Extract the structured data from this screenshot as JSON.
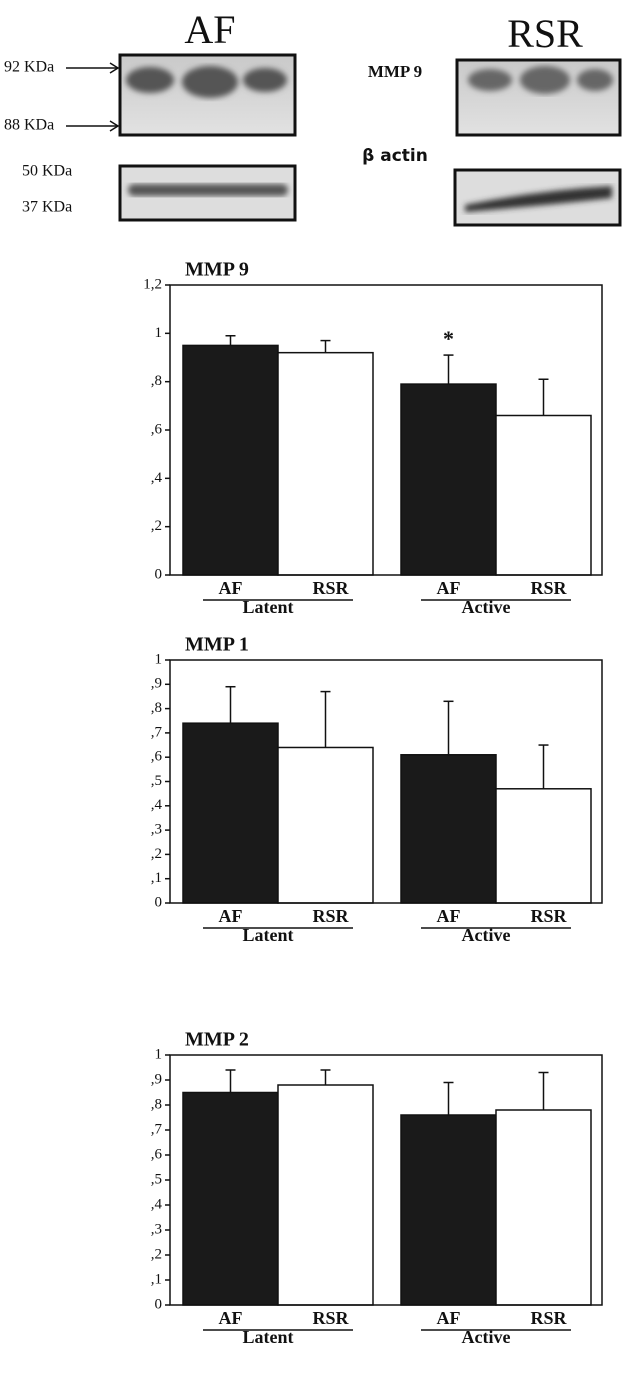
{
  "blot": {
    "left_title": "AF",
    "right_title": "RSR",
    "mmp_label": "MMP 9",
    "actin_label": "β actin",
    "markers": [
      "92 KDa",
      "88 KDa",
      "50 KDa",
      "37 KDa"
    ]
  },
  "chart_data": [
    {
      "type": "bar",
      "title": "MMP 9",
      "categories": [
        "Latent",
        "Active"
      ],
      "series": [
        {
          "name": "AF",
          "color": "#1a1a1a",
          "values": [
            0.95,
            0.79
          ],
          "errors": [
            0.04,
            0.12
          ]
        },
        {
          "name": "RSR",
          "color": "#ffffff",
          "values": [
            0.92,
            0.66
          ],
          "errors": [
            0.05,
            0.15
          ]
        }
      ],
      "annotation": "*",
      "ylim": [
        0,
        1.2
      ],
      "yticks": [
        0,
        {
          "value": 0.2,
          "label": ",2"
        },
        {
          "value": 0.4,
          "label": ",4"
        },
        {
          "value": 0.6,
          "label": ",6"
        },
        {
          "value": 0.8,
          "label": ",8"
        },
        1,
        {
          "value": 1.2,
          "label": "1,2"
        }
      ]
    },
    {
      "type": "bar",
      "title": "MMP 1",
      "categories": [
        "Latent",
        "Active"
      ],
      "series": [
        {
          "name": "AF",
          "color": "#1a1a1a",
          "values": [
            0.74,
            0.61
          ],
          "errors": [
            0.15,
            0.22
          ]
        },
        {
          "name": "RSR",
          "color": "#ffffff",
          "values": [
            0.64,
            0.47
          ],
          "errors": [
            0.23,
            0.18
          ]
        }
      ],
      "ylim": [
        0,
        1
      ],
      "yticks": [
        0,
        {
          "value": 0.1,
          "label": ",1"
        },
        {
          "value": 0.2,
          "label": ",2"
        },
        {
          "value": 0.3,
          "label": ",3"
        },
        {
          "value": 0.4,
          "label": ",4"
        },
        {
          "value": 0.5,
          "label": ",5"
        },
        {
          "value": 0.6,
          "label": ",6"
        },
        {
          "value": 0.7,
          "label": ",7"
        },
        {
          "value": 0.8,
          "label": ",8"
        },
        {
          "value": 0.9,
          "label": ",9"
        },
        1
      ]
    },
    {
      "type": "bar",
      "title": "MMP 2",
      "categories": [
        "Latent",
        "Active"
      ],
      "series": [
        {
          "name": "AF",
          "color": "#1a1a1a",
          "values": [
            0.85,
            0.76
          ],
          "errors": [
            0.09,
            0.13
          ]
        },
        {
          "name": "RSR",
          "color": "#ffffff",
          "values": [
            0.88,
            0.78
          ],
          "errors": [
            0.06,
            0.15
          ]
        }
      ],
      "ylim": [
        0,
        1
      ],
      "yticks": [
        0,
        {
          "value": 0.1,
          "label": ",1"
        },
        {
          "value": 0.2,
          "label": ",2"
        },
        {
          "value": 0.3,
          "label": ",3"
        },
        {
          "value": 0.4,
          "label": ",4"
        },
        {
          "value": 0.5,
          "label": ",5"
        },
        {
          "value": 0.6,
          "label": ",6"
        },
        {
          "value": 0.7,
          "label": ",7"
        },
        {
          "value": 0.8,
          "label": ",8"
        },
        {
          "value": 0.9,
          "label": ",9"
        },
        1
      ]
    }
  ]
}
